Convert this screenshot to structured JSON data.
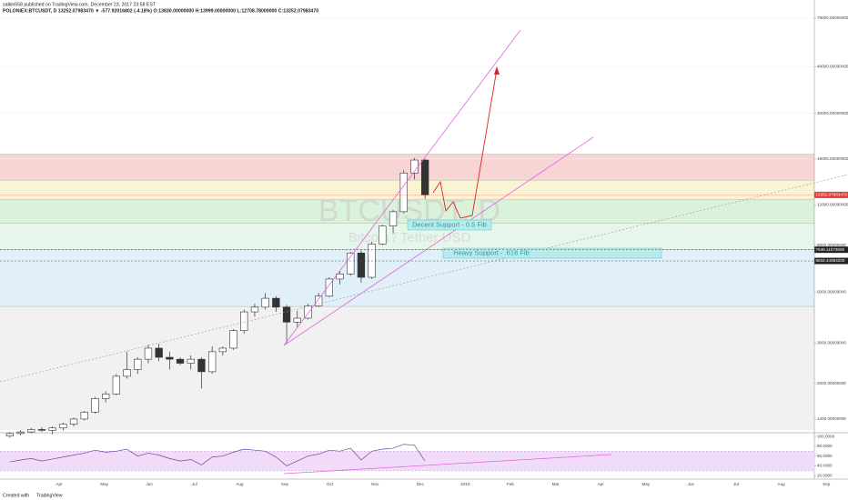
{
  "header": {
    "published": "salkin558 published on TradingView.com, December 23, 2017 23:58 EST",
    "symbol_line": "POLONIEX:BTCUSDT, D  13252.07983470 ▼ -577.92016802 (-4.18%) O:13830.00000000 H:13999.00000000 L:12708.78000000 C:13252.07983470"
  },
  "footer": {
    "created": "Created with",
    "brand": "TradingView"
  },
  "chart_data": {
    "type": "candlestick",
    "watermark": "BTCUSDT, D",
    "watermark_sub": "Bitcoin / Tether USD",
    "log_scale": true,
    "up_color": "#ffffff",
    "down_color": "#333333",
    "wick_color": "#333333",
    "categories": [
      null,
      null,
      null,
      null,
      null,
      null,
      null,
      null,
      null,
      null,
      null,
      null,
      null,
      null,
      null,
      null,
      null,
      null,
      null,
      null,
      null,
      null,
      null,
      null,
      null,
      null,
      null,
      null,
      null,
      null,
      null,
      null,
      null,
      null,
      null,
      null,
      null,
      null,
      null,
      null
    ],
    "open": [
      1180,
      1210,
      1230,
      1260,
      1250,
      1280,
      1330,
      1400,
      1500,
      1720,
      1800,
      2150,
      2300,
      2550,
      2850,
      2600,
      2550,
      2450,
      2550,
      2250,
      2750,
      2850,
      3400,
      4100,
      4300,
      4700,
      4300,
      3700,
      3850,
      4350,
      4800,
      5700,
      6000,
      7400,
      5800,
      8100,
      9700,
      11200,
      16500,
      18800
    ],
    "high": [
      1230,
      1250,
      1280,
      1290,
      1300,
      1350,
      1420,
      1520,
      1750,
      1850,
      2200,
      2750,
      2600,
      2950,
      2980,
      2750,
      2600,
      2650,
      2600,
      2900,
      2900,
      3450,
      4200,
      4450,
      4950,
      4800,
      4400,
      4150,
      4450,
      4950,
      5800,
      6200,
      7500,
      7600,
      8300,
      9800,
      11400,
      17000,
      19200,
      19000
    ],
    "low": [
      1160,
      1190,
      1210,
      1230,
      1200,
      1250,
      1300,
      1380,
      1480,
      1650,
      1780,
      2100,
      2200,
      2450,
      2500,
      2300,
      2400,
      2300,
      1900,
      2200,
      2650,
      2800,
      3300,
      3900,
      4200,
      4100,
      2980,
      3500,
      3800,
      4300,
      4750,
      5400,
      5900,
      5500,
      5700,
      8000,
      9000,
      11000,
      15500,
      12708
    ],
    "close": [
      1210,
      1230,
      1260,
      1250,
      1280,
      1330,
      1400,
      1500,
      1720,
      1800,
      2150,
      2300,
      2550,
      2850,
      2600,
      2550,
      2450,
      2550,
      2250,
      2750,
      2850,
      3400,
      4100,
      4300,
      4700,
      4300,
      3700,
      3850,
      4350,
      4800,
      5700,
      6000,
      7400,
      5800,
      8100,
      9700,
      11200,
      16500,
      18800,
      13252
    ],
    "ylim": [
      1254,
      78000
    ],
    "yticks": [
      {
        "value": 1400,
        "label": "1400.00000000"
      },
      {
        "value": 2000,
        "label": "2000.00000000"
      },
      {
        "value": 3000,
        "label": "3000.00000000"
      },
      {
        "value": 5000,
        "label": "5000.00000000"
      },
      {
        "value": 8000,
        "label": "8000.00000000"
      },
      {
        "value": 12000,
        "label": "12000.00000000"
      },
      {
        "value": 19000,
        "label": "19000.00000000"
      },
      {
        "value": 30000,
        "label": "30000.00000000"
      },
      {
        "value": 48000,
        "label": "48000.00000000"
      },
      {
        "value": 78000,
        "label": "78000.00000000"
      }
    ],
    "last_price": {
      "value": 13252.0798347,
      "label": "13252.07983470",
      "color": "#e03a3a"
    },
    "levels": [
      {
        "value": 7648.110736,
        "label": "7648.11073600"
      },
      {
        "value": 6834.448842,
        "label": "6834.44884200"
      }
    ],
    "zones": [
      {
        "from": 19950,
        "to": 15360,
        "color": "#f4c7c7"
      },
      {
        "from": 15360,
        "to": 12640,
        "color": "#f7f0c4"
      },
      {
        "from": 12640,
        "to": 9980,
        "color": "#cdeccd"
      },
      {
        "from": 9980,
        "to": 7670,
        "color": "#ddf3e4"
      },
      {
        "from": 7670,
        "to": 4330,
        "color": "#d6e9f6"
      },
      {
        "from": 4330,
        "to": 1254,
        "color": "#ececec"
      }
    ],
    "annotations": [
      "Decent Support - 0.5 Fib",
      "Heavy Support - .618 Fib"
    ],
    "x_labels": [
      "Apr",
      "May",
      "Jun",
      "Jul",
      "Aug",
      "Sep",
      "Oct",
      "Nov",
      "Dec",
      "2018",
      "Feb",
      "Mar",
      "Apr",
      "May",
      "Jun",
      "Jul",
      "Aug",
      "Sep"
    ],
    "rsi": {
      "values": [
        48,
        52,
        55,
        50,
        54,
        58,
        62,
        66,
        72,
        68,
        70,
        74,
        60,
        66,
        62,
        55,
        50,
        53,
        42,
        58,
        60,
        68,
        74,
        72,
        70,
        58,
        40,
        50,
        60,
        64,
        72,
        70,
        76,
        52,
        70,
        74,
        76,
        84,
        82,
        50
      ],
      "color": "#7a3fa0",
      "ylim": [
        15,
        102
      ],
      "bands": [
        30,
        70
      ],
      "yticks": [
        {
          "value": 100,
          "label": "100.0000"
        },
        {
          "value": 80,
          "label": "80.0000"
        },
        {
          "value": 60,
          "label": "60.0000"
        },
        {
          "value": 40,
          "label": "40.0000"
        },
        {
          "value": 20,
          "label": "20.0000"
        }
      ]
    }
  }
}
